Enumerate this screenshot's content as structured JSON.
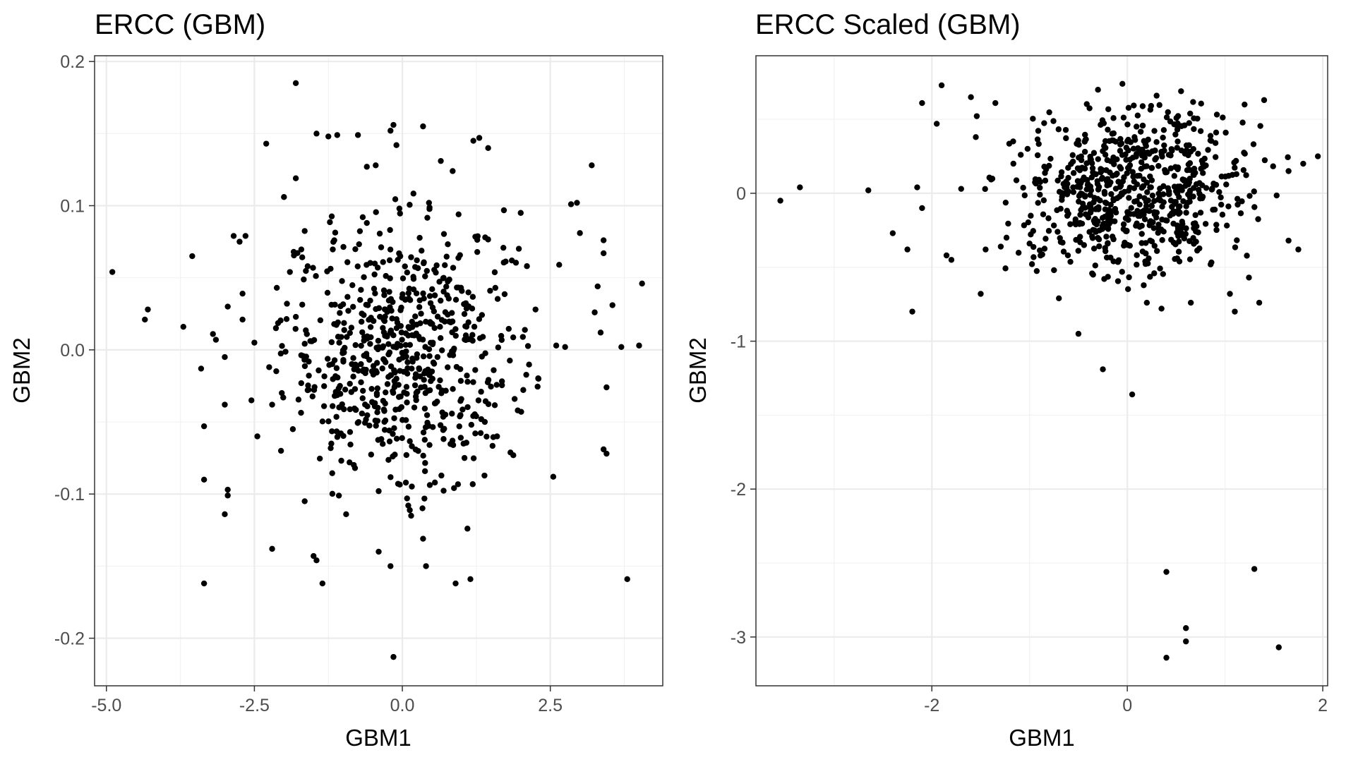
{
  "figure": {
    "background": "#ffffff",
    "point_color": "#000000"
  },
  "chart_data": [
    {
      "type": "scatter",
      "title": "ERCC (GBM)",
      "xlabel": "GBM1",
      "ylabel": "GBM2",
      "xlim": [
        -5.2,
        4.4
      ],
      "ylim": [
        -0.233,
        0.204
      ],
      "xticks": [
        -5.0,
        -2.5,
        0.0,
        2.5
      ],
      "xtick_labels": [
        "-5.0",
        "-2.5",
        "0.0",
        "2.5"
      ],
      "yticks": [
        -0.2,
        -0.1,
        0.0,
        0.1,
        0.2
      ],
      "ytick_labels": [
        "-0.2",
        "-0.1",
        "0.0",
        "0.1",
        "0.2"
      ],
      "grid": true,
      "legend": "none",
      "points": [
        [
          -4.9,
          0.054
        ],
        [
          -4.3,
          0.028
        ],
        [
          -4.35,
          0.021
        ],
        [
          -3.7,
          0.016
        ],
        [
          -3.55,
          0.065
        ],
        [
          -3.4,
          -0.013
        ],
        [
          -3.35,
          -0.053
        ],
        [
          -3.35,
          -0.09
        ],
        [
          -3.35,
          -0.162
        ],
        [
          -3.2,
          0.011
        ],
        [
          -3.15,
          0.007
        ],
        [
          -3.0,
          -0.005
        ],
        [
          -3.0,
          -0.038
        ],
        [
          -3.0,
          -0.114
        ],
        [
          -2.95,
          -0.097
        ],
        [
          -2.95,
          -0.101
        ],
        [
          -2.95,
          0.03
        ],
        [
          -2.85,
          0.079
        ],
        [
          -2.75,
          0.075
        ],
        [
          -2.65,
          0.079
        ],
        [
          -2.7,
          0.039
        ],
        [
          -2.7,
          0.021
        ],
        [
          -2.55,
          -0.035
        ],
        [
          -2.5,
          0.005
        ],
        [
          -2.45,
          -0.06
        ],
        [
          -2.3,
          0.143
        ],
        [
          -2.2,
          -0.138
        ],
        [
          -2.0,
          0.106
        ],
        [
          -1.8,
          0.185
        ],
        [
          -1.8,
          0.119
        ],
        [
          -1.65,
          -0.105
        ],
        [
          -1.5,
          -0.143
        ],
        [
          -1.45,
          -0.146
        ],
        [
          -1.45,
          0.15
        ],
        [
          -1.35,
          -0.162
        ],
        [
          -1.25,
          0.148
        ],
        [
          -1.1,
          0.149
        ],
        [
          -0.95,
          -0.114
        ],
        [
          -0.75,
          0.149
        ],
        [
          -0.6,
          0.127
        ],
        [
          -0.45,
          0.128
        ],
        [
          -0.4,
          -0.14
        ],
        [
          -0.2,
          0.152
        ],
        [
          -0.15,
          0.156
        ],
        [
          -0.1,
          0.142
        ],
        [
          -0.2,
          -0.15
        ],
        [
          -0.15,
          -0.213
        ],
        [
          0.35,
          0.155
        ],
        [
          0.35,
          -0.131
        ],
        [
          0.4,
          -0.15
        ],
        [
          0.65,
          0.131
        ],
        [
          0.85,
          0.124
        ],
        [
          0.9,
          -0.162
        ],
        [
          1.1,
          -0.124
        ],
        [
          1.15,
          -0.159
        ],
        [
          1.2,
          0.145
        ],
        [
          1.3,
          0.147
        ],
        [
          1.45,
          0.14
        ],
        [
          2.0,
          0.095
        ],
        [
          2.55,
          -0.088
        ],
        [
          2.65,
          0.059
        ],
        [
          2.85,
          0.101
        ],
        [
          2.95,
          0.102
        ],
        [
          3.0,
          0.081
        ],
        [
          3.2,
          0.128
        ],
        [
          3.25,
          0.026
        ],
        [
          3.3,
          0.044
        ],
        [
          3.35,
          0.012
        ],
        [
          3.4,
          0.076
        ],
        [
          3.4,
          0.067
        ],
        [
          3.4,
          -0.069
        ],
        [
          3.45,
          -0.072
        ],
        [
          3.45,
          -0.026
        ],
        [
          3.55,
          0.031
        ],
        [
          3.7,
          0.002
        ],
        [
          3.8,
          -0.159
        ],
        [
          4.0,
          0.003
        ],
        [
          4.05,
          0.046
        ],
        [
          2.75,
          0.002
        ],
        [
          2.6,
          0.003
        ],
        [
          -1.9,
          0.054
        ],
        [
          -2.25,
          -0.012
        ],
        [
          -2.05,
          -0.07
        ],
        [
          -1.6,
          -0.028
        ],
        [
          -1.2,
          -0.065
        ],
        [
          -0.8,
          -0.082
        ],
        [
          -0.4,
          -0.098
        ],
        [
          0.1,
          -0.108
        ],
        [
          0.55,
          -0.092
        ],
        [
          1.05,
          -0.075
        ],
        [
          1.6,
          -0.06
        ],
        [
          1.95,
          -0.042
        ],
        [
          2.3,
          -0.02
        ],
        [
          2.25,
          0.028
        ],
        [
          1.85,
          0.062
        ],
        [
          1.4,
          0.078
        ],
        [
          0.95,
          0.094
        ],
        [
          0.45,
          0.102
        ],
        [
          -0.05,
          0.098
        ],
        [
          -0.6,
          0.088
        ],
        [
          -1.15,
          0.076
        ],
        [
          -1.6,
          0.058
        ],
        [
          -1.95,
          0.032
        ],
        [
          -2.2,
          -0.038
        ],
        [
          -1.85,
          -0.055
        ],
        [
          -0.3,
          0.02
        ],
        [
          0.2,
          0.01
        ],
        [
          0.5,
          -0.015
        ],
        [
          -0.1,
          -0.02
        ],
        [
          0.05,
          0.035
        ]
      ],
      "density_hint": {
        "center": [
          0.0,
          0.0
        ],
        "sd": [
          1.0,
          0.045
        ],
        "n": 640,
        "clip": [
          [
            -2.3,
            2.3
          ],
          [
            -0.12,
            0.11
          ]
        ]
      }
    },
    {
      "type": "scatter",
      "title": "ERCC Scaled (GBM)",
      "xlabel": "GBM1",
      "ylabel": "GBM2",
      "xlim": [
        -3.8,
        2.05
      ],
      "ylim": [
        -3.33,
        0.93
      ],
      "xticks": [
        -2,
        0,
        2
      ],
      "xtick_labels": [
        "-2",
        "0",
        "2"
      ],
      "yticks": [
        -3,
        -2,
        -1,
        0
      ],
      "ytick_labels": [
        "-3",
        "-2",
        "-1",
        "0"
      ],
      "grid": true,
      "legend": "none",
      "points": [
        [
          -3.55,
          -0.05
        ],
        [
          -3.35,
          0.04
        ],
        [
          -2.65,
          0.02
        ],
        [
          -2.4,
          -0.27
        ],
        [
          -2.25,
          -0.38
        ],
        [
          -2.2,
          -0.8
        ],
        [
          -2.1,
          0.61
        ],
        [
          -2.1,
          -0.1
        ],
        [
          -2.15,
          0.04
        ],
        [
          -1.95,
          0.47
        ],
        [
          -1.9,
          0.73
        ],
        [
          -1.85,
          -0.42
        ],
        [
          -1.8,
          -0.45
        ],
        [
          -1.6,
          0.65
        ],
        [
          -1.5,
          -0.68
        ],
        [
          -1.35,
          0.61
        ],
        [
          -1.0,
          -0.34
        ],
        [
          -0.7,
          -0.71
        ],
        [
          -0.5,
          -0.95
        ],
        [
          -0.25,
          -1.19
        ],
        [
          0.05,
          -1.36
        ],
        [
          0.4,
          -2.56
        ],
        [
          0.6,
          -2.94
        ],
        [
          0.6,
          -3.03
        ],
        [
          0.4,
          -3.14
        ],
        [
          1.3,
          -2.54
        ],
        [
          1.55,
          -3.07
        ],
        [
          1.05,
          -0.68
        ],
        [
          1.1,
          -0.8
        ],
        [
          1.35,
          -0.74
        ],
        [
          1.65,
          -0.32
        ],
        [
          1.75,
          -0.38
        ],
        [
          1.8,
          0.2
        ],
        [
          1.65,
          0.15
        ],
        [
          1.95,
          0.25
        ],
        [
          1.4,
          0.63
        ],
        [
          1.2,
          0.6
        ],
        [
          0.55,
          0.69
        ],
        [
          -0.05,
          0.74
        ],
        [
          -0.3,
          0.7
        ],
        [
          -0.2,
          0.43
        ],
        [
          0.3,
          0.66
        ],
        [
          -1.55,
          0.38
        ],
        [
          -1.7,
          0.03
        ],
        [
          -1.45,
          -0.38
        ],
        [
          -0.75,
          -0.52
        ],
        [
          0.2,
          -0.74
        ],
        [
          0.65,
          -0.74
        ],
        [
          0.35,
          -0.78
        ],
        [
          -0.35,
          -0.55
        ]
      ],
      "density_hint": {
        "center": [
          0.05,
          0.02
        ],
        "sd": [
          0.6,
          0.28
        ],
        "n": 700,
        "clip": [
          [
            -1.55,
            1.65
          ],
          [
            -0.65,
            0.62
          ]
        ]
      }
    }
  ]
}
